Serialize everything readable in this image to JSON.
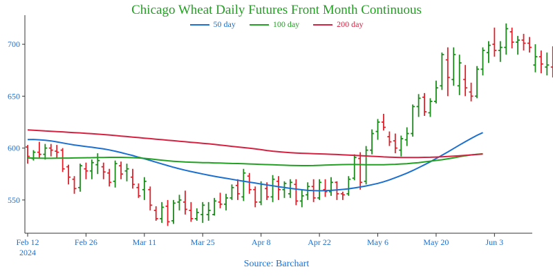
{
  "chart_data": {
    "type": "ohlc",
    "title": "Chicago Wheat Daily Futures Front Month Continuous",
    "source": "Source: Barchart",
    "ylim": [
      518,
      728
    ],
    "yticks": [
      550,
      600,
      650,
      700
    ],
    "xticks": [
      {
        "label": "Feb 12",
        "sub": "2024",
        "index": 0
      },
      {
        "label": "Feb 26",
        "sub": "",
        "index": 10
      },
      {
        "label": "Mar 11",
        "sub": "",
        "index": 20
      },
      {
        "label": "Mar 25",
        "sub": "",
        "index": 30
      },
      {
        "label": "Apr 8",
        "sub": "",
        "index": 40
      },
      {
        "label": "Apr 22",
        "sub": "",
        "index": 50
      },
      {
        "label": "May 6",
        "sub": "",
        "index": 60
      },
      {
        "label": "May 20",
        "sub": "",
        "index": 70
      },
      {
        "label": "Jun 3",
        "sub": "",
        "index": 80
      }
    ],
    "colors": {
      "up": "#1a8a1a",
      "down": "#e0202a",
      "ma50": "#1a6fd0",
      "ma100": "#22a022",
      "ma200": "#d62040",
      "title": "#22a022",
      "axis": "#1a6fd0"
    },
    "series": [
      {
        "name": "50 day",
        "color": "#1a6fd0",
        "values": [
          608.2,
          608.3,
          608.0,
          607.5,
          606.9,
          606.0,
          604.9,
          603.9,
          603.0,
          602.2,
          601.5,
          600.8,
          600.0,
          599.2,
          598.2,
          597.0,
          595.7,
          594.2,
          592.8,
          591.2,
          589.8,
          588.1,
          586.4,
          584.7,
          583.1,
          581.5,
          580.1,
          578.7,
          577.4,
          576.2,
          575.0,
          573.9,
          572.8,
          571.8,
          570.9,
          570.0,
          569.0,
          568.1,
          567.2,
          566.3,
          565.4,
          564.5,
          563.7,
          562.8,
          562.0,
          561.2,
          560.5,
          559.9,
          559.3,
          559.0,
          558.9,
          559.0,
          559.3,
          559.7,
          560.2,
          560.8,
          561.6,
          562.5,
          563.5,
          564.7,
          566.0,
          567.6,
          569.4,
          571.4,
          573.6,
          575.9,
          578.4,
          581.1,
          583.9,
          586.8,
          589.9,
          593.1,
          596.3,
          599.6,
          602.9,
          606.1,
          609.3,
          612.3,
          614.9
        ]
      },
      {
        "name": "100 day",
        "color": "#22a022",
        "values": [
          590.5,
          590.4,
          590.3,
          590.2,
          590.2,
          590.3,
          590.4,
          590.4,
          590.5,
          590.6,
          590.7,
          590.8,
          590.9,
          591.0,
          591.1,
          591.1,
          591.1,
          591.0,
          590.8,
          590.5,
          590.1,
          589.6,
          589.0,
          588.4,
          587.8,
          587.3,
          586.9,
          586.6,
          586.4,
          586.2,
          586.0,
          585.9,
          585.7,
          585.6,
          585.4,
          585.2,
          585.1,
          584.9,
          584.7,
          584.5,
          584.3,
          584.1,
          583.9,
          583.7,
          583.5,
          583.3,
          583.2,
          583.1,
          583.1,
          583.2,
          583.4,
          583.6,
          583.8,
          584.0,
          584.1,
          584.2,
          584.2,
          584.1,
          584.0,
          583.9,
          583.9,
          584.0,
          584.2,
          584.4,
          584.7,
          585.0,
          585.5,
          586.0,
          586.7,
          587.4,
          588.1,
          588.8,
          589.7,
          590.6,
          591.6,
          592.6,
          593.4,
          594.0,
          594.5
        ]
      },
      {
        "name": "200 day",
        "color": "#d62040",
        "values": [
          617.5,
          617.2,
          616.9,
          616.5,
          616.2,
          615.9,
          615.6,
          615.2,
          614.9,
          614.6,
          614.2,
          613.8,
          613.4,
          613.0,
          612.6,
          612.1,
          611.6,
          611.1,
          610.6,
          610.1,
          609.6,
          609.1,
          608.6,
          608.1,
          607.6,
          607.1,
          606.6,
          606.1,
          605.6,
          605.1,
          604.6,
          604.1,
          603.5,
          602.9,
          602.3,
          601.7,
          601.1,
          600.5,
          599.9,
          599.3,
          598.5,
          597.7,
          597.0,
          596.5,
          596.0,
          595.6,
          595.3,
          595.0,
          594.8,
          594.6,
          594.4,
          594.2,
          594.0,
          593.8,
          593.5,
          593.2,
          593.0,
          592.7,
          592.4,
          592.1,
          591.8,
          591.5,
          591.3,
          591.1,
          591.0,
          591.0,
          591.0,
          591.0,
          591.1,
          591.2,
          591.4,
          591.6,
          591.9,
          592.2,
          592.6,
          593.0,
          593.4,
          593.8,
          594.2
        ]
      }
    ],
    "ohlc": [
      [
        601,
        603,
        585,
        592
      ],
      [
        590,
        598,
        588,
        596
      ],
      [
        596,
        606,
        590,
        594
      ],
      [
        594,
        604,
        589,
        600
      ],
      [
        600,
        604,
        592,
        598
      ],
      [
        597,
        603,
        590,
        596
      ],
      [
        598,
        600,
        577,
        580
      ],
      [
        582,
        584,
        565,
        572
      ],
      [
        570,
        573,
        556,
        561
      ],
      [
        562,
        585,
        558,
        583
      ],
      [
        580,
        586,
        570,
        578
      ],
      [
        578,
        589,
        570,
        586
      ],
      [
        584,
        595,
        575,
        588
      ],
      [
        582,
        586,
        570,
        577
      ],
      [
        576,
        580,
        563,
        567
      ],
      [
        568,
        588,
        562,
        585
      ],
      [
        583,
        587,
        570,
        575
      ],
      [
        578,
        585,
        568,
        580
      ],
      [
        572,
        580,
        561,
        565
      ],
      [
        562,
        566,
        552,
        554
      ],
      [
        560,
        572,
        550,
        568
      ],
      [
        560,
        563,
        540,
        545
      ],
      [
        540,
        544,
        530,
        532
      ],
      [
        532,
        548,
        528,
        543
      ],
      [
        544,
        550,
        525,
        529
      ],
      [
        530,
        550,
        527,
        547
      ],
      [
        548,
        555,
        540,
        550
      ],
      [
        548,
        559,
        536,
        541
      ],
      [
        540,
        548,
        529,
        532
      ],
      [
        532,
        542,
        530,
        538
      ],
      [
        536,
        548,
        528,
        545
      ],
      [
        536,
        548,
        530,
        540
      ],
      [
        536,
        552,
        535,
        549
      ],
      [
        548,
        557,
        542,
        546
      ],
      [
        546,
        556,
        540,
        552
      ],
      [
        552,
        565,
        550,
        562
      ],
      [
        564,
        570,
        550,
        556
      ],
      [
        553,
        580,
        549,
        576
      ],
      [
        573,
        576,
        556,
        560
      ],
      [
        560,
        563,
        543,
        548
      ],
      [
        548,
        568,
        545,
        565
      ],
      [
        561,
        567,
        550,
        553
      ],
      [
        553,
        574,
        548,
        570
      ],
      [
        568,
        573,
        550,
        560
      ],
      [
        560,
        568,
        552,
        566
      ],
      [
        556,
        570,
        552,
        567
      ],
      [
        565,
        570,
        545,
        549
      ],
      [
        549,
        560,
        543,
        554
      ],
      [
        555,
        567,
        550,
        563
      ],
      [
        563,
        570,
        548,
        552
      ],
      [
        552,
        570,
        550,
        567
      ],
      [
        560,
        570,
        553,
        558
      ],
      [
        558,
        572,
        554,
        567
      ],
      [
        567,
        568,
        550,
        556
      ],
      [
        556,
        558,
        550,
        555
      ],
      [
        556,
        573,
        554,
        570
      ],
      [
        571,
        594,
        569,
        591
      ],
      [
        590,
        596,
        560,
        567
      ],
      [
        568,
        602,
        565,
        598
      ],
      [
        598,
        618,
        594,
        614
      ],
      [
        616,
        628,
        608,
        625
      ],
      [
        625,
        633,
        617,
        620
      ],
      [
        611,
        616,
        602,
        606
      ],
      [
        607,
        614,
        595,
        600
      ],
      [
        598,
        612,
        592,
        609
      ],
      [
        608,
        620,
        602,
        614
      ],
      [
        614,
        642,
        611,
        640
      ],
      [
        640,
        652,
        630,
        648
      ],
      [
        649,
        653,
        631,
        635
      ],
      [
        634,
        648,
        630,
        645
      ],
      [
        645,
        665,
        643,
        658
      ],
      [
        660,
        692,
        656,
        690
      ],
      [
        685,
        697,
        650,
        668
      ],
      [
        666,
        697,
        660,
        690
      ],
      [
        660,
        690,
        651,
        682
      ],
      [
        666,
        680,
        650,
        658
      ],
      [
        654,
        663,
        645,
        650
      ],
      [
        650,
        679,
        648,
        676
      ],
      [
        676,
        697,
        670,
        694
      ],
      [
        692,
        703,
        682,
        699
      ],
      [
        700,
        716,
        688,
        694
      ],
      [
        694,
        703,
        683,
        697
      ],
      [
        697,
        720,
        690,
        715
      ],
      [
        712,
        716,
        696,
        702
      ],
      [
        702,
        708,
        690,
        704
      ],
      [
        704,
        710,
        694,
        701
      ],
      [
        701,
        707,
        692,
        697
      ],
      [
        680,
        700,
        673,
        688
      ],
      [
        688,
        694,
        672,
        681
      ],
      [
        678,
        692,
        670,
        680
      ],
      [
        678,
        698,
        668,
        672
      ]
    ],
    "xMaxIndex": 86
  }
}
